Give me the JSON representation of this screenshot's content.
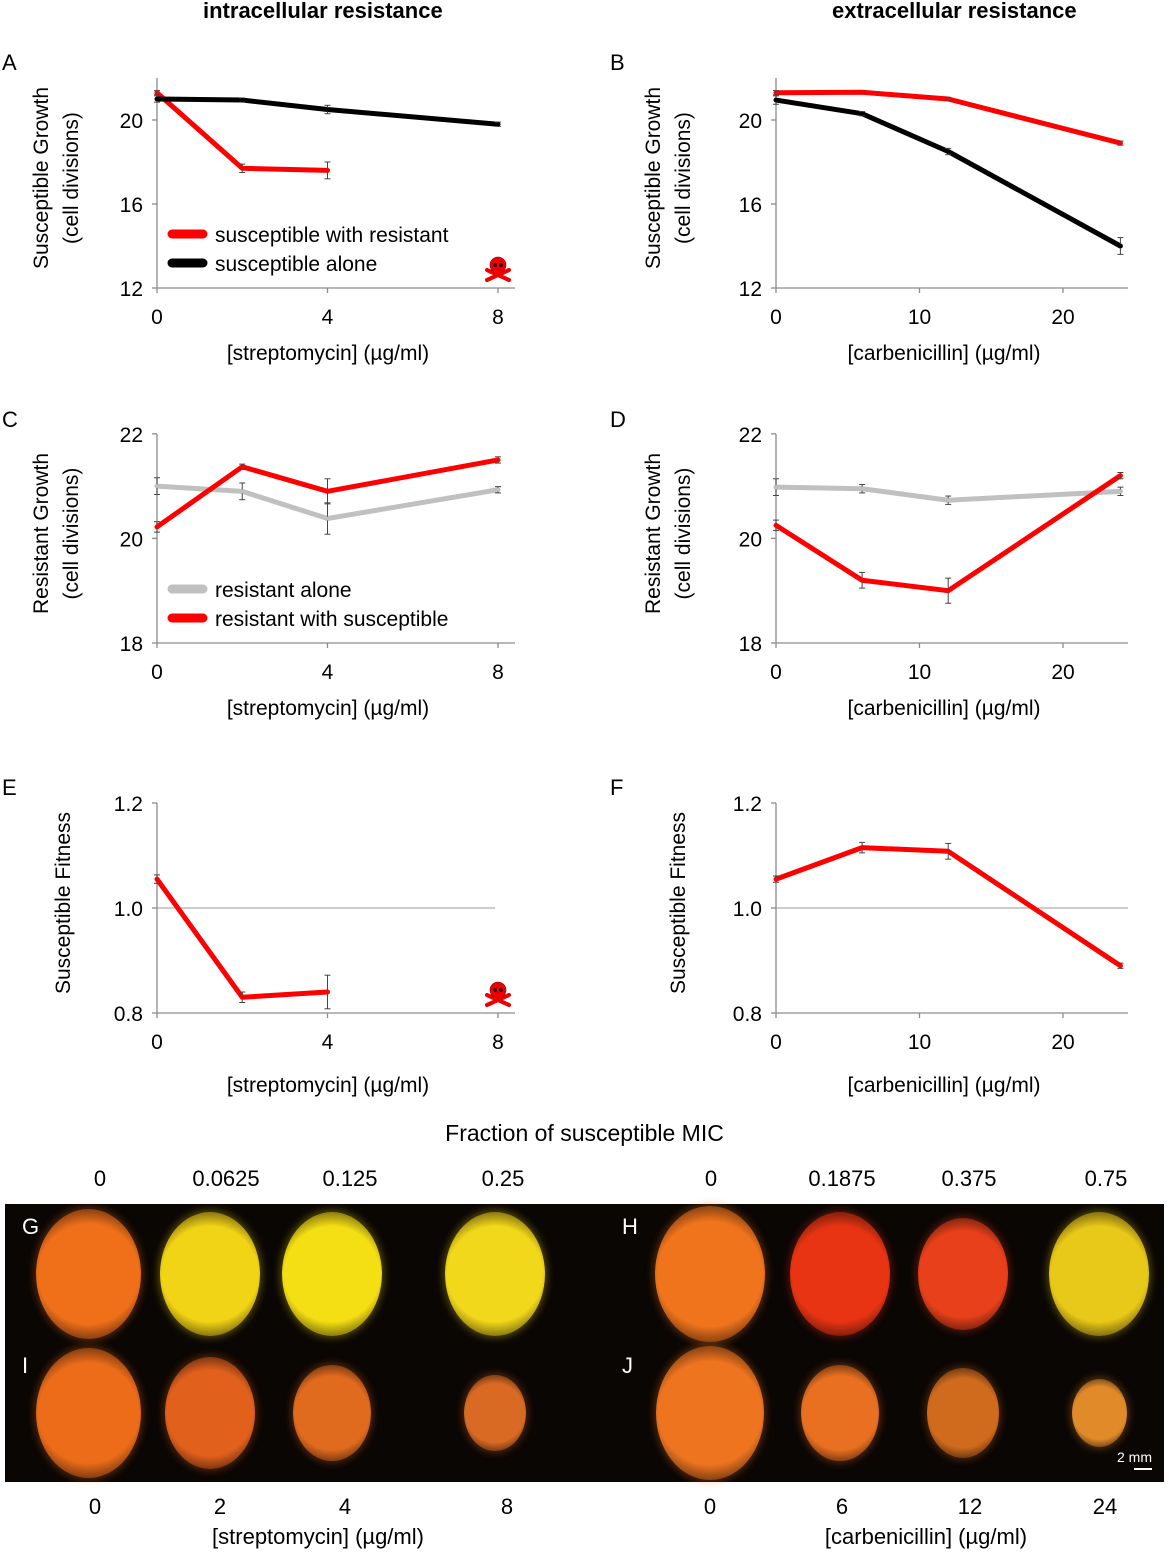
{
  "column_titles": [
    "intracellular resistance",
    "extracellular resistance"
  ],
  "chart_data": [
    {
      "panel": "A",
      "type": "line",
      "ylabel": "Susceptible Growth\n(cell divisions)",
      "xlabel": "[streptomycin] (µg/ml)",
      "ylim": [
        12,
        22
      ],
      "yticks": [
        12,
        16,
        20
      ],
      "xlim": [
        0,
        8
      ],
      "xticks": [
        0,
        4,
        8
      ],
      "legend": "inside-lower-left",
      "annotation": "skull-and-crossbones at streptomycin 8 (susceptible with resistant: no growth)",
      "series": [
        {
          "name": "susceptible with resistant",
          "color": "#ff0000",
          "x": [
            0,
            2,
            4
          ],
          "y": [
            21.3,
            17.7,
            17.6
          ],
          "err": [
            0.1,
            0.2,
            0.4
          ]
        },
        {
          "name": "susceptible alone",
          "color": "#000000",
          "x": [
            0,
            2,
            4,
            8
          ],
          "y": [
            21.0,
            20.95,
            20.5,
            19.8
          ],
          "err": [
            0.15,
            0.1,
            0.2,
            0.1
          ]
        }
      ]
    },
    {
      "panel": "B",
      "type": "line",
      "ylabel": "Susceptible Growth\n(cell divisions)",
      "xlabel": "[carbenicillin] (µg/ml)",
      "ylim": [
        12,
        22
      ],
      "yticks": [
        12,
        16,
        20
      ],
      "xlim": [
        0,
        25
      ],
      "xticks": [
        0,
        10,
        20
      ],
      "series": [
        {
          "name": "susceptible with resistant",
          "color": "#ff0000",
          "x": [
            0,
            6,
            12,
            24
          ],
          "y": [
            21.3,
            21.32,
            21.0,
            18.9
          ],
          "err": [
            0.1,
            0.05,
            0.08,
            0.1
          ]
        },
        {
          "name": "susceptible alone",
          "color": "#000000",
          "x": [
            0,
            6,
            12,
            24
          ],
          "y": [
            20.95,
            20.3,
            18.5,
            14.0
          ],
          "err": [
            0.2,
            0.1,
            0.15,
            0.4
          ]
        }
      ]
    },
    {
      "panel": "C",
      "type": "line",
      "ylabel": "Resistant Growth\n(cell divisions)",
      "xlabel": "[streptomycin] (µg/ml)",
      "ylim": [
        18,
        22
      ],
      "yticks": [
        18,
        20,
        22
      ],
      "xlim": [
        0,
        8
      ],
      "xticks": [
        0,
        4,
        8
      ],
      "legend": "inside-lower-left",
      "series": [
        {
          "name": "resistant alone",
          "color": "#c0c0c0",
          "x": [
            0,
            2,
            4,
            8
          ],
          "y": [
            21.0,
            20.9,
            20.38,
            20.93
          ],
          "err": [
            0.16,
            0.16,
            0.3,
            0.06
          ]
        },
        {
          "name": "resistant with susceptible",
          "color": "#ff0000",
          "x": [
            0,
            2,
            4,
            8
          ],
          "y": [
            20.22,
            21.37,
            20.9,
            21.5
          ],
          "err": [
            0.1,
            0.05,
            0.24,
            0.06
          ]
        }
      ]
    },
    {
      "panel": "D",
      "type": "line",
      "ylabel": "Resistant Growth\n(cell divisions)",
      "xlabel": "[carbenicillin] (µg/ml)",
      "ylim": [
        18,
        22
      ],
      "yticks": [
        18,
        20,
        22
      ],
      "xlim": [
        0,
        25
      ],
      "xticks": [
        0,
        10,
        20
      ],
      "series": [
        {
          "name": "resistant alone",
          "color": "#c0c0c0",
          "x": [
            0,
            6,
            12,
            24
          ],
          "y": [
            20.98,
            20.95,
            20.73,
            20.9
          ],
          "err": [
            0.16,
            0.08,
            0.08,
            0.08
          ]
        },
        {
          "name": "resistant with susceptible",
          "color": "#ff0000",
          "x": [
            0,
            6,
            12,
            24
          ],
          "y": [
            20.25,
            19.2,
            19.0,
            21.2
          ],
          "err": [
            0.1,
            0.15,
            0.24,
            0.06
          ]
        }
      ]
    },
    {
      "panel": "E",
      "type": "line",
      "ylabel": "Susceptible Fitness",
      "xlabel": "[streptomycin] (µg/ml)",
      "ylim": [
        0.8,
        1.2
      ],
      "yticks": [
        0.8,
        1.0,
        1.2
      ],
      "xlim": [
        0,
        8
      ],
      "xticks": [
        0,
        4,
        8
      ],
      "reference_line": 1.0,
      "annotation": "skull-and-crossbones at streptomycin 8",
      "series": [
        {
          "name": "susceptible fitness",
          "color": "#ff0000",
          "x": [
            0,
            2,
            4
          ],
          "y": [
            1.055,
            0.83,
            0.84
          ],
          "err": [
            0.008,
            0.01,
            0.032
          ]
        }
      ]
    },
    {
      "panel": "F",
      "type": "line",
      "ylabel": "Susceptible Fitness",
      "xlabel": "[carbenicillin] (µg/ml)",
      "ylim": [
        0.8,
        1.2
      ],
      "yticks": [
        0.8,
        1.0,
        1.2
      ],
      "xlim": [
        0,
        25
      ],
      "xticks": [
        0,
        10,
        20
      ],
      "reference_line": 1.0,
      "series": [
        {
          "name": "susceptible fitness",
          "color": "#ff0000",
          "x": [
            0,
            6,
            12,
            24
          ],
          "y": [
            1.055,
            1.115,
            1.108,
            0.89
          ],
          "err": [
            0.006,
            0.01,
            0.015,
            0.005
          ]
        }
      ]
    }
  ],
  "images": {
    "title": "Fraction of susceptible MIC",
    "mic_fractions_left": [
      "0",
      "0.0625",
      "0.125",
      "0.25"
    ],
    "mic_fractions_right": [
      "0",
      "0.1875",
      "0.375",
      "0.75"
    ],
    "conc_left": [
      "0",
      "2",
      "4",
      "8"
    ],
    "conc_right": [
      "0",
      "6",
      "12",
      "24"
    ],
    "xlabel_left": "[streptomycin] (µg/ml)",
    "xlabel_right": "[carbenicillin] (µg/ml)",
    "row_letters": [
      "G",
      "H",
      "I",
      "J"
    ],
    "scale_bar": "2 mm",
    "colony_colors": {
      "G": [
        "#f0701a",
        "#f2d416",
        "#f4de14",
        "#f2d81a"
      ],
      "H": [
        "#f0741c",
        "#e83412",
        "#e8401a",
        "#e8c818"
      ],
      "I": [
        "#ec6c1a",
        "#e0601c",
        "#e06a1e",
        "#d86a24"
      ],
      "J": [
        "#ee7420",
        "#e87020",
        "#d06a1c",
        "#e08a2a"
      ]
    }
  }
}
